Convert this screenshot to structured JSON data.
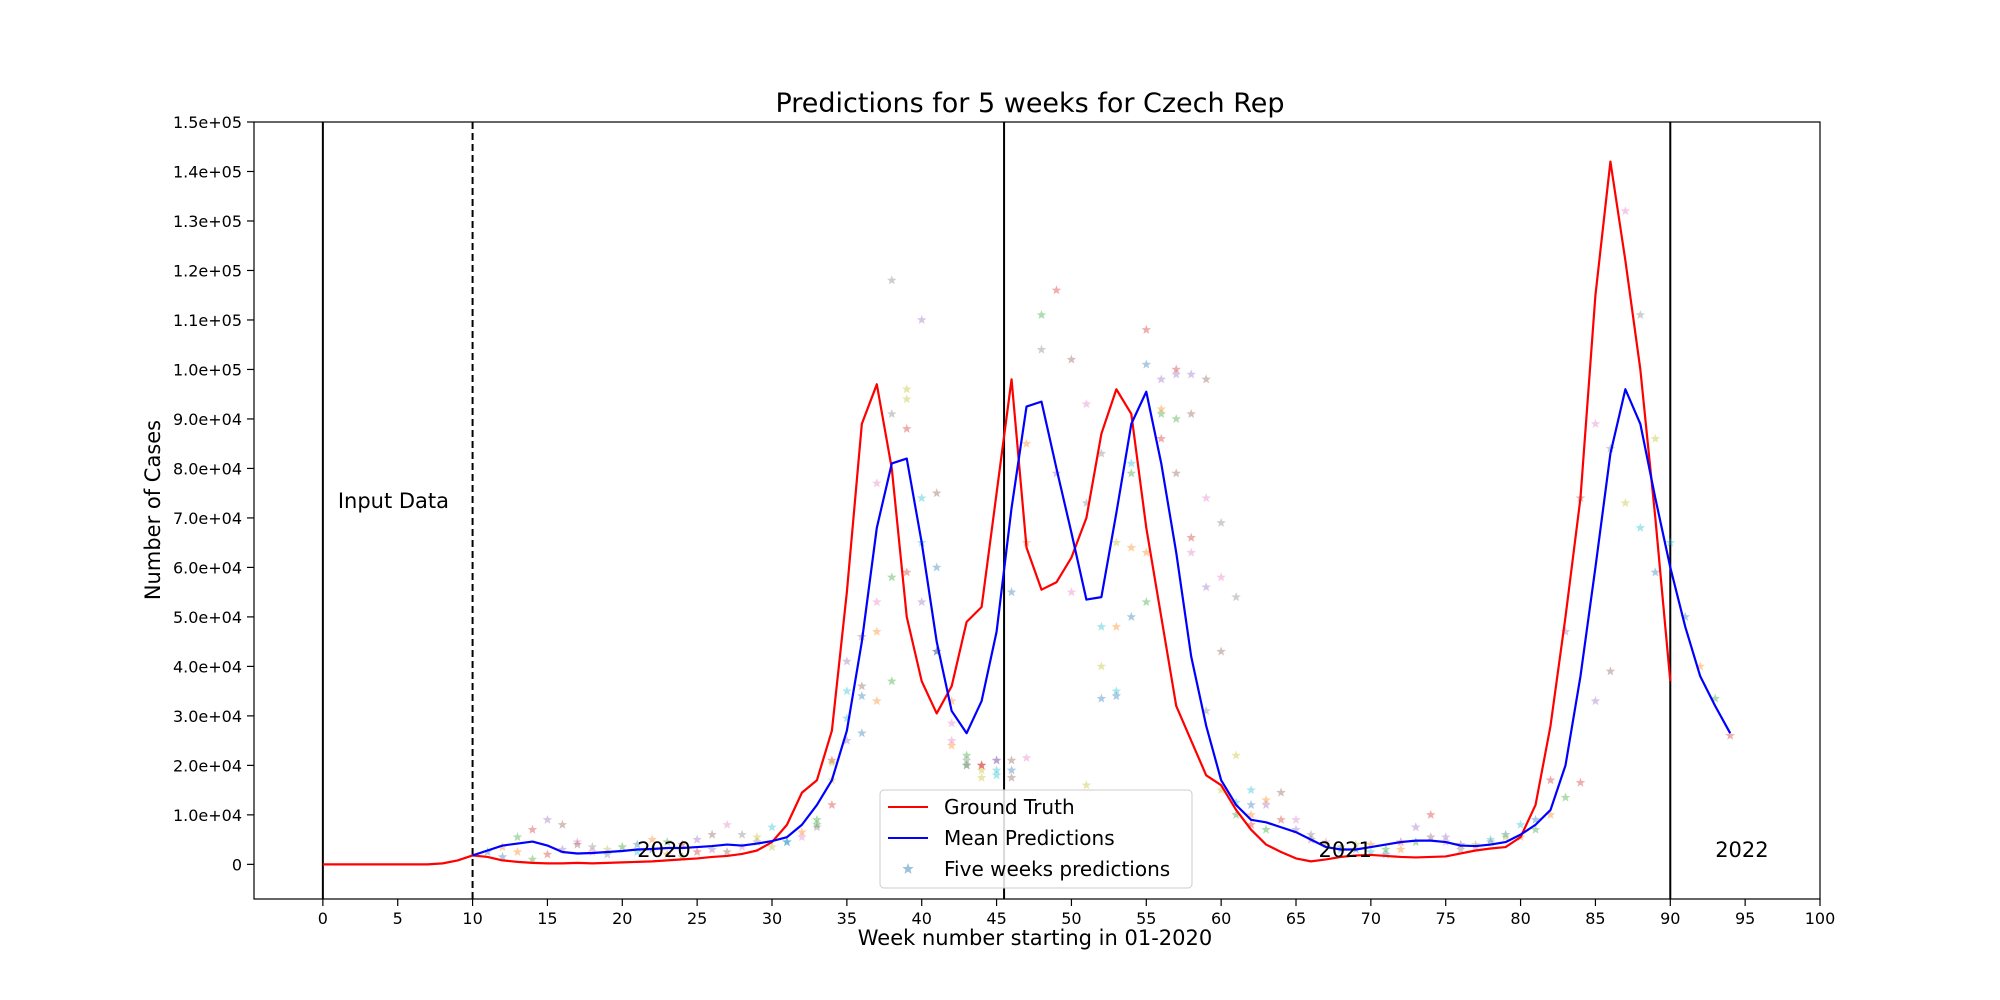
{
  "chart_data": {
    "type": "line",
    "title": "Predictions for 5 weeks for Czech Rep",
    "xlabel": "Week number starting in 01-2020",
    "ylabel": "Number of Cases",
    "xlim": [
      -4.6,
      100
    ],
    "ylim": [
      -7000,
      150000
    ],
    "x_ticks": [
      0,
      5,
      10,
      15,
      20,
      25,
      30,
      35,
      40,
      45,
      50,
      55,
      60,
      65,
      70,
      75,
      80,
      85,
      90,
      95,
      100
    ],
    "y_ticks": [
      0,
      10000,
      20000,
      30000,
      40000,
      50000,
      60000,
      70000,
      80000,
      90000,
      100000,
      110000,
      120000,
      130000,
      140000,
      150000
    ],
    "y_tick_labels": [
      "0",
      "1.0e+04",
      "2.0e+04",
      "3.0e+04",
      "4.0e+04",
      "5.0e+04",
      "6.0e+04",
      "7.0e+04",
      "8.0e+04",
      "9.0e+04",
      "1.0e+05",
      "1.1e+05",
      "1.2e+05",
      "1.3e+05",
      "1.4e+05",
      "1.5e+05"
    ],
    "grid": false,
    "legend_position": "bottom-center",
    "colors": {
      "ground_truth": "#ff0000",
      "mean_predictions": "#0000ff",
      "five_weeks_predictions": "#1f77b4",
      "vertical_line": "#000000"
    },
    "vertical_lines": [
      {
        "x": 0,
        "style": "solid"
      },
      {
        "x": 10,
        "style": "dashed"
      },
      {
        "x": 45.5,
        "style": "solid"
      },
      {
        "x": 90,
        "style": "solid"
      }
    ],
    "annotations": [
      {
        "text": "Input Data",
        "x": 1,
        "y": 72000
      },
      {
        "text": "2020",
        "x": 21,
        "y": 1500
      },
      {
        "text": "2021",
        "x": 66.5,
        "y": 1500
      },
      {
        "text": "2022",
        "x": 93,
        "y": 1500
      }
    ],
    "series": [
      {
        "name": "Ground Truth",
        "x": [
          0,
          1,
          2,
          3,
          4,
          5,
          6,
          7,
          8,
          9,
          10,
          11,
          12,
          13,
          14,
          15,
          16,
          17,
          18,
          19,
          20,
          21,
          22,
          23,
          24,
          25,
          26,
          27,
          28,
          29,
          30,
          31,
          32,
          33,
          34,
          35,
          36,
          37,
          38,
          39,
          40,
          41,
          42,
          43,
          44,
          45,
          46,
          47,
          48,
          49,
          50,
          51,
          52,
          53,
          54,
          55,
          56,
          57,
          58,
          59,
          60,
          61,
          62,
          63,
          64,
          65,
          66,
          67,
          68,
          69,
          70,
          71,
          72,
          73,
          74,
          75,
          76,
          77,
          78,
          79,
          80,
          81,
          82,
          83,
          84,
          85,
          86,
          87,
          88,
          89,
          90
        ],
        "values": [
          0,
          0,
          0,
          0,
          0,
          0,
          0,
          0,
          200,
          800,
          1800,
          1500,
          800,
          500,
          300,
          200,
          200,
          300,
          200,
          300,
          400,
          500,
          600,
          800,
          1000,
          1200,
          1500,
          1700,
          2100,
          2800,
          4500,
          8000,
          14500,
          17000,
          27000,
          55000,
          89000,
          97000,
          80000,
          50000,
          37000,
          30500,
          36000,
          49000,
          52000,
          75000,
          98000,
          64000,
          55500,
          57000,
          62000,
          70000,
          87000,
          96000,
          91000,
          68000,
          50000,
          32000,
          25000,
          18000,
          16000,
          11000,
          7000,
          4000,
          2500,
          1200,
          600,
          1000,
          1500,
          1800,
          1900,
          1700,
          1500,
          1400,
          1500,
          1600,
          2200,
          2800,
          3200,
          3500,
          5500,
          12000,
          28000,
          50000,
          74000,
          115000,
          142000,
          122000,
          100000,
          70000,
          37000
        ]
      },
      {
        "name": "Mean Predictions",
        "x": [
          10,
          11,
          12,
          13,
          14,
          15,
          16,
          17,
          18,
          19,
          20,
          21,
          22,
          23,
          24,
          25,
          26,
          27,
          28,
          29,
          30,
          31,
          32,
          33,
          34,
          35,
          36,
          37,
          38,
          39,
          40,
          41,
          42,
          43,
          44,
          45,
          46,
          47,
          48,
          49,
          50,
          51,
          52,
          53,
          54,
          55,
          56,
          57,
          58,
          59,
          60,
          61,
          62,
          63,
          64,
          65,
          66,
          67,
          68,
          69,
          70,
          71,
          72,
          73,
          74,
          75,
          76,
          77,
          78,
          79,
          80,
          81,
          82,
          83,
          84,
          85,
          86,
          87,
          88,
          89,
          90,
          91,
          92,
          93,
          94
        ],
        "values": [
          1800,
          2800,
          3800,
          4200,
          4600,
          3800,
          2500,
          2200,
          2300,
          2500,
          2700,
          3000,
          3100,
          3300,
          3300,
          3500,
          3700,
          4000,
          3800,
          4200,
          4700,
          5500,
          8000,
          12000,
          17000,
          27000,
          45000,
          68000,
          81000,
          82000,
          65000,
          45000,
          31000,
          26500,
          33000,
          47000,
          72000,
          92500,
          93500,
          80000,
          67000,
          53500,
          54000,
          71000,
          89000,
          95500,
          81000,
          63000,
          42000,
          28000,
          17000,
          12000,
          9000,
          8500,
          7500,
          6500,
          5000,
          3500,
          3000,
          3000,
          3500,
          4000,
          4500,
          4800,
          4800,
          4500,
          3800,
          3700,
          4000,
          4500,
          6000,
          8000,
          11000,
          20000,
          38000,
          60000,
          83000,
          96000,
          89000,
          74000,
          60000,
          48000,
          38000,
          32000,
          26500
        ]
      },
      {
        "name": "Five weeks predictions",
        "marker": "star",
        "x": [
          11,
          12,
          13,
          14,
          15,
          16,
          17,
          18,
          19,
          20,
          21,
          22,
          23,
          24,
          25,
          26,
          27,
          28,
          29,
          30,
          12,
          13,
          14,
          15,
          16,
          17,
          18,
          19,
          20,
          21,
          22,
          23,
          24,
          25,
          26,
          27,
          28,
          29,
          30,
          31,
          31,
          32,
          33,
          34,
          35,
          36,
          37,
          38,
          39,
          40,
          41,
          42,
          43,
          44,
          45,
          46,
          32,
          33,
          34,
          35,
          36,
          37,
          38,
          39,
          40,
          41,
          42,
          43,
          44,
          45,
          46,
          47,
          33,
          34,
          35,
          36,
          37,
          38,
          39,
          40,
          41,
          42,
          43,
          44,
          45,
          46,
          47,
          48,
          34,
          35,
          36,
          37,
          38,
          39,
          40,
          41,
          42,
          43,
          44,
          45,
          46,
          47,
          48,
          49,
          49,
          50,
          51,
          52,
          53,
          54,
          55,
          56,
          57,
          58,
          59,
          60,
          50,
          51,
          52,
          53,
          54,
          55,
          56,
          57,
          58,
          59,
          60,
          61,
          51,
          52,
          53,
          54,
          55,
          56,
          57,
          58,
          59,
          60,
          61,
          62,
          52,
          53,
          54,
          55,
          56,
          57,
          58,
          59,
          60,
          61,
          62,
          63,
          61,
          62,
          63,
          64,
          65,
          66,
          67,
          68,
          69,
          70,
          71,
          72,
          73,
          74,
          75,
          76,
          77,
          78,
          79,
          80,
          81,
          82,
          83,
          84,
          85,
          86,
          87,
          88,
          89,
          62,
          63,
          64,
          65,
          66,
          67,
          68,
          69,
          70,
          71,
          72,
          73,
          74,
          75,
          76,
          77,
          78,
          79,
          80,
          81,
          82,
          83,
          84,
          85,
          86,
          87,
          88,
          89,
          90,
          91,
          92,
          93,
          94
        ],
        "values": [
          2500,
          3500,
          5500,
          7000,
          9000,
          8000,
          4500,
          3500,
          3000,
          3500,
          4000,
          5000,
          4500,
          4000,
          5000,
          6000,
          8000,
          6000,
          5500,
          7500,
          1500,
          2500,
          1000,
          2000,
          3000,
          4000,
          2500,
          2000,
          3500,
          2500,
          3000,
          2000,
          1500,
          2500,
          3000,
          2500,
          3500,
          4500,
          3500,
          4500,
          4500,
          6500,
          8000,
          12000,
          25000,
          36000,
          53000,
          118000,
          94000,
          74000,
          60000,
          33000,
          22000,
          20000,
          21000,
          21000,
          5500,
          7500,
          17000,
          29500,
          34000,
          47000,
          58000,
          59000,
          53000,
          43000,
          28500,
          21000,
          19000,
          18000,
          19000,
          85000,
          9000,
          21000,
          41000,
          46000,
          77000,
          91000,
          96000,
          65000,
          43000,
          24000,
          20000,
          20000,
          21000,
          17500,
          21500,
          104000,
          20500,
          35000,
          26500,
          33000,
          37000,
          88000,
          110000,
          75000,
          25000,
          20000,
          17500,
          19000,
          55000,
          65000,
          111000,
          116000,
          79000,
          102000,
          93000,
          83000,
          65000,
          81000,
          101000,
          92000,
          90000,
          66000,
          56000,
          43000,
          55000,
          73000,
          40000,
          35000,
          50000,
          63000,
          91000,
          100000,
          99000,
          98000,
          58000,
          54000,
          16000,
          48000,
          34000,
          64000,
          53000,
          86000,
          99000,
          91000,
          74000,
          69000,
          22000,
          15000,
          33500,
          48000,
          79000,
          108000,
          98000,
          79000,
          63000,
          31000,
          15000,
          12500,
          12000,
          13000,
          10000,
          8000,
          12000,
          14500,
          9000,
          6000,
          4000,
          3000,
          3000,
          4000,
          3000,
          4500,
          7500,
          5500,
          4500,
          3000,
          4000,
          5000,
          6000,
          5500,
          7000,
          17000,
          47000,
          74000,
          89000,
          84000,
          73000,
          68000,
          59000,
          10000,
          7000,
          9000,
          7000,
          5000,
          4500,
          3500,
          4000,
          2500,
          2000,
          3000,
          4500,
          10000,
          5500,
          4000,
          3500,
          4500,
          5500,
          8000,
          9000,
          10000,
          13500,
          16500,
          33000,
          39000,
          132000,
          111000,
          86000,
          65000,
          50000,
          40000,
          33500,
          26000
        ]
      }
    ]
  }
}
